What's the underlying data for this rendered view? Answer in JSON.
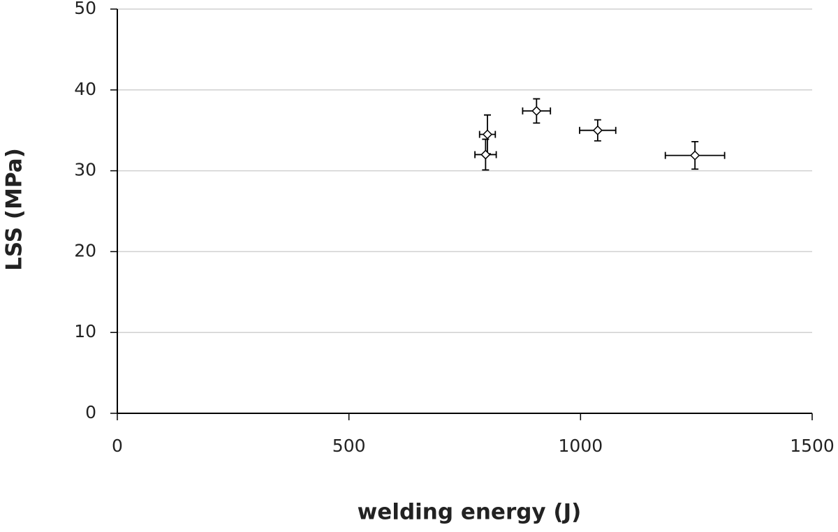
{
  "chart_data": {
    "type": "scatter",
    "x_label": "welding energy (J)",
    "y_label": "LSS (MPa)",
    "x": [
      799,
      795,
      905,
      1037,
      1247
    ],
    "values": [
      34.5,
      32.0,
      37.4,
      35.0,
      31.9
    ],
    "x_error": [
      17,
      23,
      30,
      39,
      64
    ],
    "y_error": [
      2.4,
      1.9,
      1.5,
      1.3,
      1.7
    ],
    "color": "#000000",
    "marker_fill": "#ffffff",
    "xlim": [
      0,
      1500
    ],
    "ylim": [
      0,
      50
    ],
    "xticks": [
      0,
      500,
      1000,
      1500
    ],
    "yticks": [
      0,
      10,
      20,
      30,
      40,
      50
    ],
    "grid": true
  }
}
